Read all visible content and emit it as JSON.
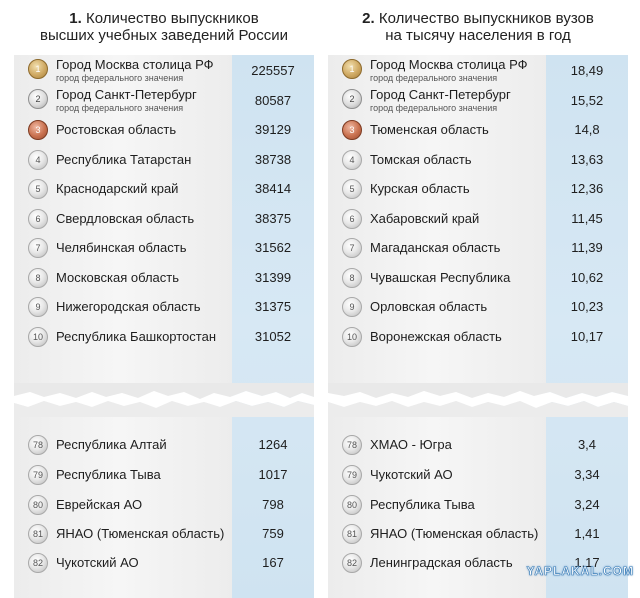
{
  "left": {
    "heading_num": "1.",
    "heading_line1": "Количество выпускников",
    "heading_line2": "высших учебных заведений России",
    "rows": [
      {
        "rank": "1",
        "name": "Город Москва столица РФ",
        "sub": "город федерального значения",
        "value": "225557"
      },
      {
        "rank": "2",
        "name": "Город Санкт-Петербург",
        "sub": "город федерального значения",
        "value": "80587"
      },
      {
        "rank": "3",
        "name": "Ростовская область",
        "value": "39129"
      },
      {
        "rank": "4",
        "name": "Республика Татарстан",
        "value": "38738"
      },
      {
        "rank": "5",
        "name": "Краснодарский край",
        "value": "38414"
      },
      {
        "rank": "6",
        "name": "Свердловская область",
        "value": "38375"
      },
      {
        "rank": "7",
        "name": "Челябинская область",
        "value": "31562"
      },
      {
        "rank": "8",
        "name": "Московская область",
        "value": "31399"
      },
      {
        "rank": "9",
        "name": "Нижегородская область",
        "value": "31375"
      },
      {
        "rank": "10",
        "name": "Республика Башкортостан",
        "value": "31052"
      }
    ],
    "bottom_rows": [
      {
        "rank": "78",
        "name": "Республика Алтай",
        "value": "1264"
      },
      {
        "rank": "79",
        "name": "Республика Тыва",
        "value": "1017"
      },
      {
        "rank": "80",
        "name": "Еврейская АО",
        "value": "798"
      },
      {
        "rank": "81",
        "name": "ЯНАО (Тюменская область)",
        "value": "759"
      },
      {
        "rank": "82",
        "name": "Чукотский АО",
        "value": "167"
      }
    ]
  },
  "right": {
    "heading_num": "2.",
    "heading_line1": "Количество выпускников вузов",
    "heading_line2": "на тысячу населения в год",
    "rows": [
      {
        "rank": "1",
        "name": "Город Москва столица РФ",
        "sub": "город федерального значения",
        "value": "18,49"
      },
      {
        "rank": "2",
        "name": "Город Санкт-Петербург",
        "sub": "город федерального значения",
        "value": "15,52"
      },
      {
        "rank": "3",
        "name": "Тюменская область",
        "value": "14,8"
      },
      {
        "rank": "4",
        "name": "Томская область",
        "value": "13,63"
      },
      {
        "rank": "5",
        "name": "Курская область",
        "value": "12,36"
      },
      {
        "rank": "6",
        "name": "Хабаровский край",
        "value": "11,45"
      },
      {
        "rank": "7",
        "name": "Магаданская область",
        "value": "11,39"
      },
      {
        "rank": "8",
        "name": "Чувашская Республика",
        "value": "10,62"
      },
      {
        "rank": "9",
        "name": "Орловская область",
        "value": "10,23"
      },
      {
        "rank": "10",
        "name": "Воронежская область",
        "value": "10,17"
      }
    ],
    "bottom_rows": [
      {
        "rank": "78",
        "name": "ХМАО - Югра",
        "value": "3,4"
      },
      {
        "rank": "79",
        "name": "Чукотский АО",
        "value": "3,34"
      },
      {
        "rank": "80",
        "name": "Республика Тыва",
        "value": "3,24"
      },
      {
        "rank": "81",
        "name": "ЯНАО (Тюменская область)",
        "value": "1,41"
      },
      {
        "rank": "82",
        "name": "Ленинградская область",
        "value": "1,17"
      }
    ]
  },
  "watermark": "YAPLAKAL.COM",
  "colors": {
    "value_column": "#d3e6f3",
    "card": "#eeeeee",
    "gold": "#c9a25d",
    "silver": "#cfcfcf",
    "bronze": "#c46a48"
  },
  "chart_data": [
    {
      "type": "table",
      "title": "Количество выпускников высших учебных заведений России",
      "columns": [
        "rank",
        "region",
        "value"
      ],
      "rows": [
        [
          1,
          "Город Москва столица РФ",
          225557
        ],
        [
          2,
          "Город Санкт-Петербург",
          80587
        ],
        [
          3,
          "Ростовская область",
          39129
        ],
        [
          4,
          "Республика Татарстан",
          38738
        ],
        [
          5,
          "Краснодарский край",
          38414
        ],
        [
          6,
          "Свердловская область",
          38375
        ],
        [
          7,
          "Челябинская область",
          31562
        ],
        [
          8,
          "Московская область",
          31399
        ],
        [
          9,
          "Нижегородская область",
          31375
        ],
        [
          10,
          "Республика Башкортостан",
          31052
        ],
        [
          78,
          "Республика Алтай",
          1264
        ],
        [
          79,
          "Республика Тыва",
          1017
        ],
        [
          80,
          "Еврейская АО",
          798
        ],
        [
          81,
          "ЯНАО (Тюменская область)",
          759
        ],
        [
          82,
          "Чукотский АО",
          167
        ]
      ]
    },
    {
      "type": "table",
      "title": "Количество выпускников вузов на тысячу населения в год",
      "columns": [
        "rank",
        "region",
        "value"
      ],
      "rows": [
        [
          1,
          "Город Москва столица РФ",
          18.49
        ],
        [
          2,
          "Город Санкт-Петербург",
          15.52
        ],
        [
          3,
          "Тюменская область",
          14.8
        ],
        [
          4,
          "Томская область",
          13.63
        ],
        [
          5,
          "Курская область",
          12.36
        ],
        [
          6,
          "Хабаровский край",
          11.45
        ],
        [
          7,
          "Магаданская область",
          11.39
        ],
        [
          8,
          "Чувашская Республика",
          10.62
        ],
        [
          9,
          "Орловская область",
          10.23
        ],
        [
          10,
          "Воронежская область",
          10.17
        ],
        [
          78,
          "ХМАО - Югра",
          3.4
        ],
        [
          79,
          "Чукотский АО",
          3.34
        ],
        [
          80,
          "Республика Тыва",
          3.24
        ],
        [
          81,
          "ЯНАО (Тюменская область)",
          1.41
        ],
        [
          82,
          "Ленинградская область",
          1.17
        ]
      ]
    }
  ]
}
